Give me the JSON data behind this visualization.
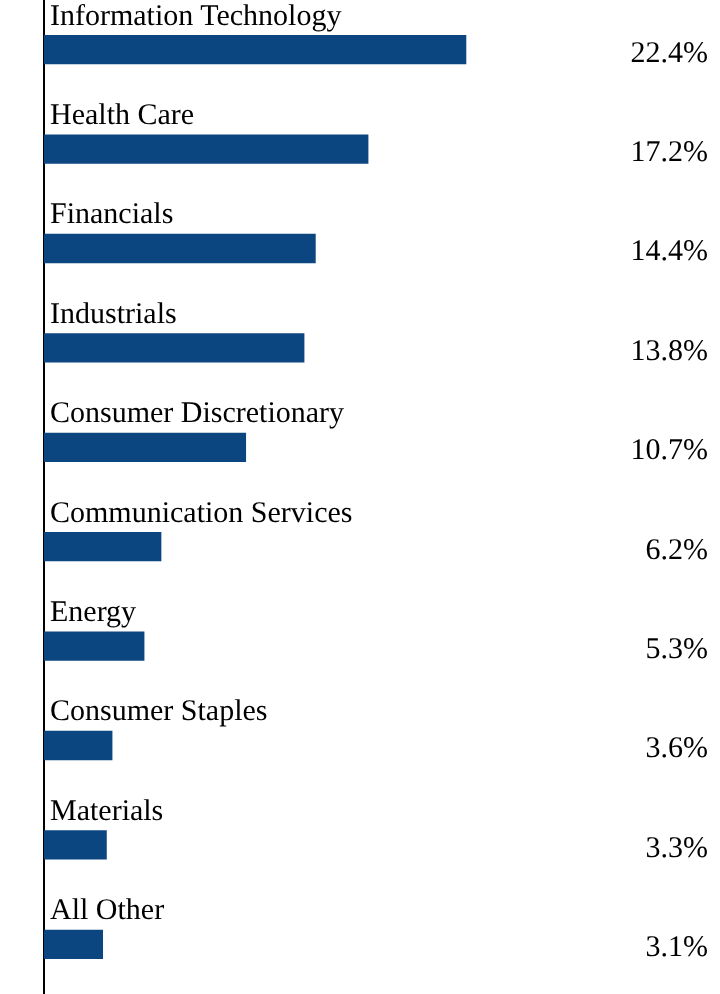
{
  "chart_data": {
    "type": "bar",
    "orientation": "horizontal",
    "categories": [
      "Information Technology",
      "Health Care",
      "Financials",
      "Industrials",
      "Consumer Discretionary",
      "Communication Services",
      "Energy",
      "Consumer Staples",
      "Materials",
      "All Other"
    ],
    "values": [
      22.4,
      17.2,
      14.4,
      13.8,
      10.7,
      6.2,
      5.3,
      3.6,
      3.3,
      3.1
    ],
    "value_labels": [
      "22.4%",
      "17.2%",
      "14.4%",
      "13.8%",
      "10.7%",
      "6.2%",
      "5.3%",
      "3.6%",
      "3.3%",
      "3.1%"
    ],
    "color": "#0b4680",
    "grid": false,
    "legend": false
  }
}
